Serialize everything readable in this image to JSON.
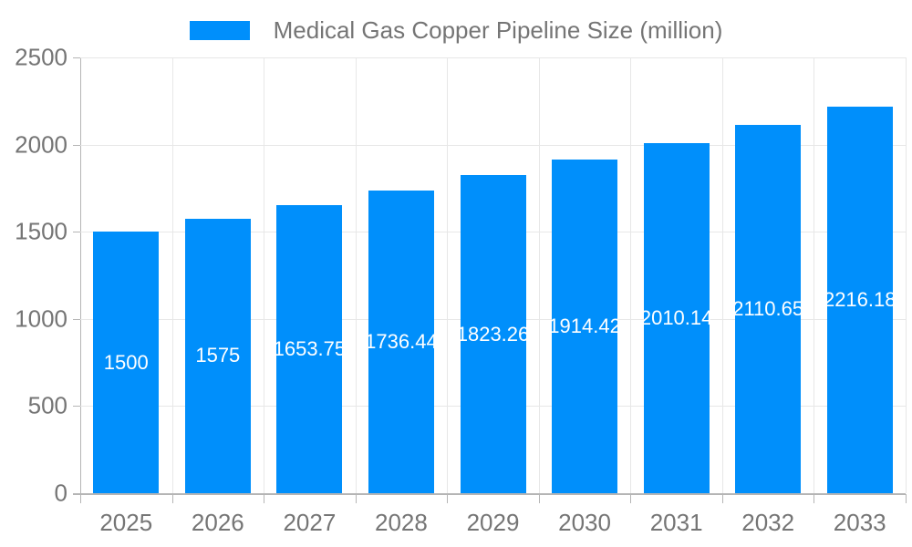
{
  "legend": {
    "series_label": "Medical Gas Copper Pipeline Size (million)"
  },
  "colors": {
    "bar": "#008FFB",
    "axis_text": "#757575",
    "grid": "#e7e7e7",
    "axis_line": "#b5b5b5",
    "value_label": "#ffffff"
  },
  "chart_data": {
    "type": "bar",
    "title": "Medical Gas Copper Pipeline Size (million)",
    "categories": [
      "2025",
      "2026",
      "2027",
      "2028",
      "2029",
      "2030",
      "2031",
      "2032",
      "2033"
    ],
    "values": [
      1500,
      1575,
      1653.75,
      1736.44,
      1823.26,
      1914.42,
      2010.14,
      2110.65,
      2216.18
    ],
    "value_labels": [
      "1500",
      "1575",
      "1653.75",
      "1736.44",
      "1823.26",
      "1914.42",
      "2010.14",
      "2110.65",
      "2216.18"
    ],
    "xlabel": "",
    "ylabel": "",
    "ylim": [
      0,
      2500
    ],
    "yticks": [
      0,
      500,
      1000,
      1500,
      2000,
      2500
    ],
    "grid": "on",
    "legend_position": "top",
    "series_color": "#008FFB"
  }
}
